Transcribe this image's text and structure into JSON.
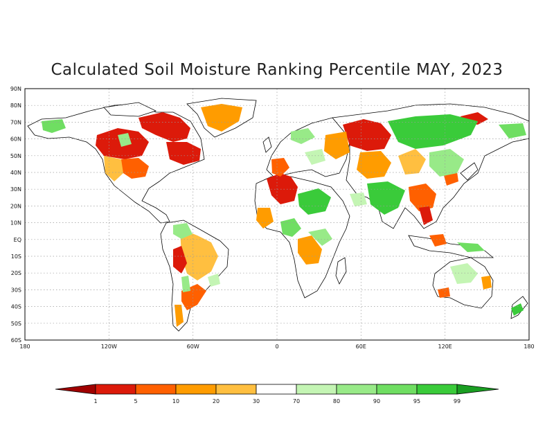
{
  "title": "Calculated Soil Moisture Ranking Percentile MAY, 2023",
  "map": {
    "lat_labels": [
      "90N",
      "80N",
      "70N",
      "60N",
      "50N",
      "40N",
      "30N",
      "20N",
      "10N",
      "EQ",
      "10S",
      "20S",
      "30S",
      "40S",
      "50S",
      "60S"
    ],
    "lon_labels": [
      "180",
      "120W",
      "60W",
      "0",
      "60E",
      "120E",
      "180"
    ],
    "grid_lines": "dotted"
  },
  "legend": {
    "labels": [
      "1",
      "5",
      "10",
      "20",
      "30",
      "70",
      "80",
      "90",
      "95",
      "99"
    ],
    "colors": [
      "#a00000",
      "#dc1a0a",
      "#ff6000",
      "#ff9c00",
      "#ffbf40",
      "#ffffff",
      "#c4f5b4",
      "#98ea88",
      "#6fde62",
      "#3acb3a",
      "#1a9e22"
    ]
  }
}
